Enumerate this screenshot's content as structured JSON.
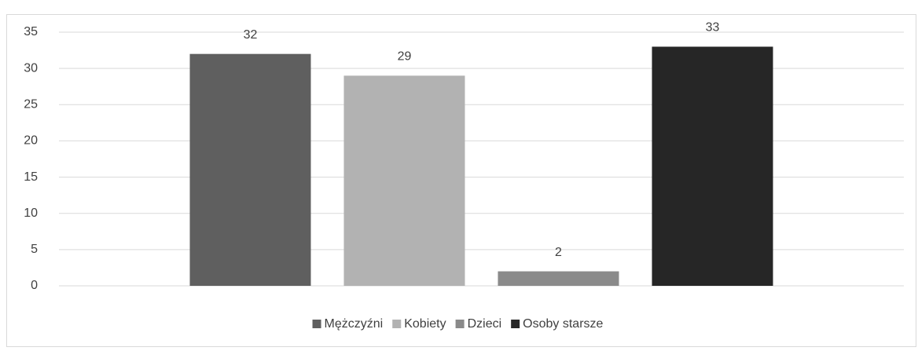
{
  "chart_data": {
    "type": "bar",
    "series": [
      {
        "name": "Mężczyźni",
        "color": "#5f5f5f",
        "values": [
          32
        ]
      },
      {
        "name": "Kobiety",
        "color": "#b2b2b2",
        "values": [
          29
        ]
      },
      {
        "name": "Dzieci",
        "color": "#8a8a8a",
        "values": [
          2
        ]
      },
      {
        "name": "Osoby starsze",
        "color": "#262626",
        "values": [
          33
        ]
      }
    ],
    "ylim": [
      0,
      35
    ],
    "yticks": [
      0,
      5,
      10,
      15,
      20,
      25,
      30,
      35
    ],
    "grid": true,
    "legend": "bottom",
    "data_labels": true
  }
}
